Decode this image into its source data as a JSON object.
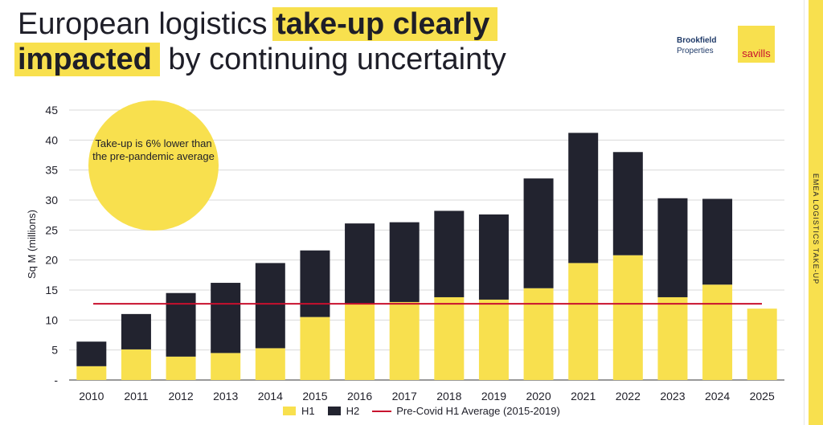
{
  "header": {
    "title_part1": "European logistics ",
    "title_highlight1": "take-up clearly",
    "title_highlight2": "impacted",
    "title_part2": " by continuing uncertainty"
  },
  "logos": {
    "brookfield_line1": "Brookfield",
    "brookfield_line2": "Properties",
    "savills": "savills"
  },
  "sidebar": {
    "label": "EMEA LOGISTICS TAKE-UP"
  },
  "callout": {
    "text": "Take-up is 6% lower than the pre-pandemic average"
  },
  "colors": {
    "h1": "#f8e04e",
    "h2": "#22232f",
    "average": "#c8102e",
    "highlight": "#f8e04e"
  },
  "chart_data": {
    "type": "bar",
    "stacked": true,
    "title": "",
    "ylabel": "Sq M (millions)",
    "xlabel": "",
    "ylim": [
      0,
      45
    ],
    "yticks": [
      0,
      5,
      10,
      15,
      20,
      25,
      30,
      35,
      40,
      45
    ],
    "ytick_labels": [
      "-",
      "5",
      "10",
      "15",
      "20",
      "25",
      "30",
      "35",
      "40",
      "45"
    ],
    "categories": [
      "2010",
      "2011",
      "2012",
      "2013",
      "2014",
      "2015",
      "2016",
      "2017",
      "2018",
      "2019",
      "2020",
      "2021",
      "2022",
      "2023",
      "2024",
      "2025"
    ],
    "series": [
      {
        "name": "H1",
        "values": [
          2.3,
          5.1,
          3.9,
          4.5,
          5.3,
          10.5,
          12.6,
          13.0,
          13.8,
          13.4,
          15.3,
          19.5,
          20.8,
          13.8,
          15.9,
          11.9
        ]
      },
      {
        "name": "H2",
        "values": [
          4.1,
          5.9,
          10.6,
          11.7,
          14.2,
          11.1,
          13.5,
          13.3,
          14.4,
          14.2,
          18.3,
          21.7,
          17.2,
          16.5,
          14.3,
          0
        ]
      }
    ],
    "reference_line": {
      "name": "Pre-Covid H1 Average (2015-2019)",
      "value": 12.7
    },
    "grid": true,
    "legend": "bottom"
  }
}
